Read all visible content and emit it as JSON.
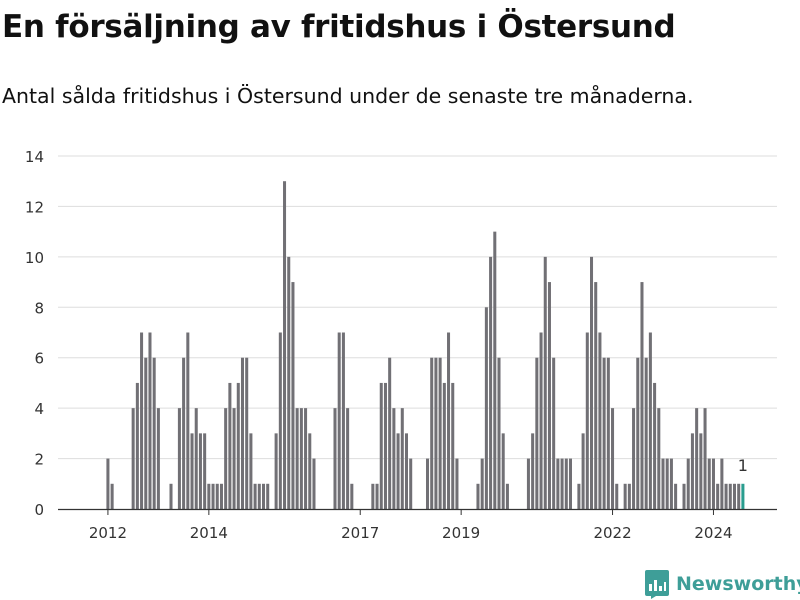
{
  "header": {
    "title": "En försäljning av fritidshus i Östersund",
    "subtitle": "Antal sålda fritidshus i Östersund under de senaste tre månaderna."
  },
  "brand": {
    "name": "Newsworthy",
    "icon": "newsworthy-logo-icon",
    "color": "#3e9e98"
  },
  "colors": {
    "bar": "#717075",
    "highlight": "#2a9d8f",
    "grid": "#dddddd",
    "axis": "#333333"
  },
  "chart_data": {
    "type": "bar",
    "title": "En försäljning av fritidshus i Östersund",
    "subtitle": "Antal sålda fritidshus i Östersund under de senaste tre månaderna.",
    "ylim": [
      0,
      14
    ],
    "yticks": [
      0,
      2,
      4,
      6,
      8,
      10,
      12,
      14
    ],
    "grid": true,
    "x_start": "2011-09",
    "x_end": "2024-08",
    "xticks": [
      {
        "label": "2012",
        "date": "2012-01"
      },
      {
        "label": "2014",
        "date": "2014-01"
      },
      {
        "label": "2017",
        "date": "2017-01"
      },
      {
        "label": "2019",
        "date": "2019-01"
      },
      {
        "label": "2022",
        "date": "2022-01"
      },
      {
        "label": "2024",
        "date": "2024-01"
      }
    ],
    "values": [
      0,
      0,
      0,
      0,
      2,
      1,
      0,
      0,
      0,
      0,
      4,
      5,
      7,
      6,
      7,
      6,
      4,
      0,
      0,
      1,
      0,
      4,
      6,
      7,
      3,
      4,
      3,
      3,
      1,
      1,
      1,
      1,
      4,
      5,
      4,
      5,
      6,
      6,
      3,
      1,
      1,
      1,
      1,
      0,
      3,
      7,
      13,
      10,
      9,
      4,
      4,
      4,
      3,
      2,
      0,
      0,
      0,
      0,
      4,
      7,
      7,
      4,
      1,
      0,
      0,
      0,
      0,
      1,
      1,
      5,
      5,
      6,
      4,
      3,
      4,
      3,
      2,
      0,
      0,
      0,
      2,
      6,
      6,
      6,
      5,
      7,
      5,
      2,
      0,
      0,
      0,
      0,
      1,
      2,
      8,
      10,
      11,
      6,
      3,
      1,
      0,
      0,
      0,
      0,
      2,
      3,
      6,
      7,
      10,
      9,
      6,
      2,
      2,
      2,
      2,
      0,
      1,
      3,
      7,
      10,
      9,
      7,
      6,
      6,
      4,
      1,
      0,
      1,
      1,
      4,
      6,
      9,
      6,
      7,
      5,
      4,
      2,
      2,
      2,
      1,
      0,
      1,
      2,
      3,
      4,
      3,
      4,
      2,
      2,
      1,
      2,
      1,
      1,
      1,
      1,
      1
    ],
    "highlight_last": true,
    "annotation": {
      "label": "1",
      "value": 1
    }
  }
}
